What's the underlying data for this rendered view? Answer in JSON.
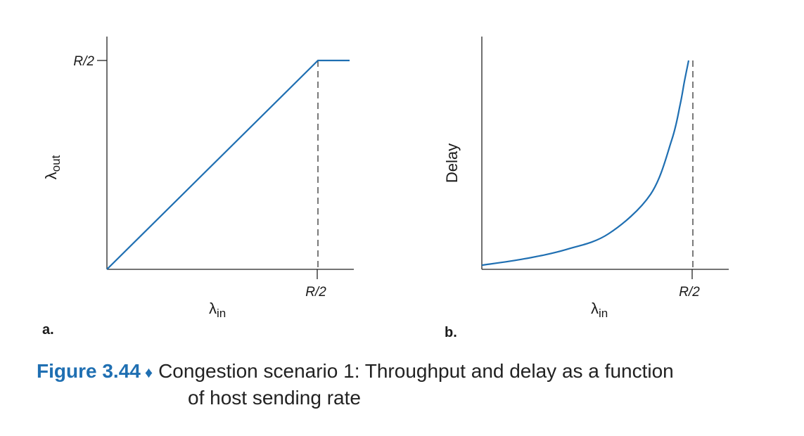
{
  "colors": {
    "curve": "#1f6fb2",
    "axis": "#222222",
    "caption_accent": "#1f6fb2"
  },
  "panels": [
    {
      "label": "a.",
      "x_label": "λin",
      "y_label": "λout",
      "x_tick": "R/2",
      "y_tick": "R/2"
    },
    {
      "label": "b.",
      "x_label": "λin",
      "y_label": "Delay",
      "x_tick": "R/2"
    }
  ],
  "caption": {
    "number": "Figure 3.44",
    "line1": "Congestion scenario 1: Throughput and delay as a function",
    "line2": "of host sending rate"
  },
  "chart_data": [
    {
      "type": "line",
      "title": "",
      "xlabel": "λin",
      "ylabel": "λout",
      "x_ticks": [
        "R/2"
      ],
      "y_ticks": [
        "R/2"
      ],
      "xlim": [
        0,
        0.6
      ],
      "ylim": [
        0,
        0.5
      ],
      "series": [
        {
          "x": [
            0,
            0.5,
            0.575
          ],
          "y": [
            0,
            0.5,
            0.5
          ]
        }
      ],
      "reference_lines": [
        {
          "orientation": "vertical",
          "x": 0.5,
          "style": "dashed"
        }
      ],
      "grid": false
    },
    {
      "type": "line",
      "title": "",
      "xlabel": "λin",
      "ylabel": "Delay",
      "x_ticks": [
        "R/2"
      ],
      "xlim": [
        0,
        0.6
      ],
      "ylim": [
        0,
        1
      ],
      "series": [
        {
          "x": [
            0,
            0.1,
            0.2,
            0.3,
            0.4,
            0.45,
            0.47,
            0.48,
            0.49
          ],
          "y": [
            0.02,
            0.05,
            0.095,
            0.17,
            0.36,
            0.62,
            0.79,
            0.9,
            1.0
          ]
        }
      ],
      "reference_lines": [
        {
          "orientation": "vertical",
          "x": 0.5,
          "style": "dashed"
        }
      ],
      "grid": false
    }
  ]
}
